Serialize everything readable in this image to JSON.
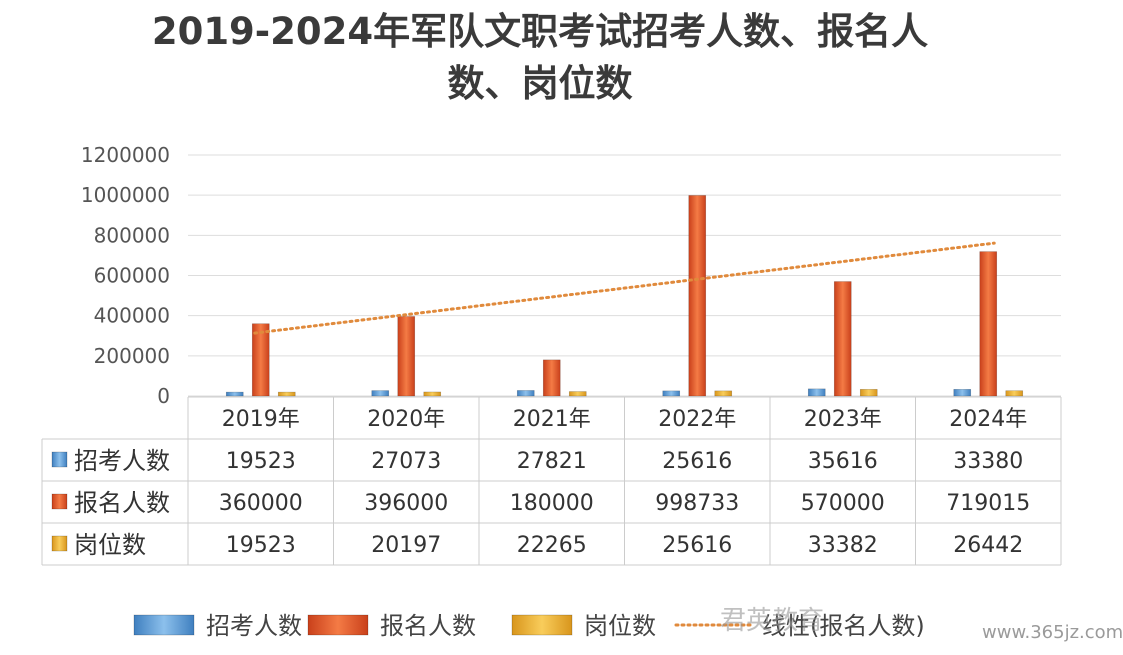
{
  "chart_data": {
    "type": "bar",
    "title_line1": "2019-2024年军队文职考试招考人数、报名人",
    "title_line2": "数、岗位数",
    "categories": [
      "2019年",
      "2020年",
      "2021年",
      "2022年",
      "2023年",
      "2024年"
    ],
    "series": [
      {
        "name": "招考人数",
        "values": [
          19523,
          27073,
          27821,
          25616,
          35616,
          33380
        ],
        "color": "#5b9bd5"
      },
      {
        "name": "报名人数",
        "values": [
          360000,
          396000,
          180000,
          998733,
          570000,
          719015
        ],
        "color": "#e0562a"
      },
      {
        "name": "岗位数",
        "values": [
          19523,
          20197,
          22265,
          25616,
          33382,
          26442
        ],
        "color": "#f2b233"
      }
    ],
    "cell_labels": [
      [
        "19523",
        "27073",
        "27821",
        "25616",
        "35616",
        "33380"
      ],
      [
        "360000",
        "396000",
        "180000",
        "998733",
        "570000",
        "719015"
      ],
      [
        "19523",
        "20197",
        "22265",
        "25616",
        "33382",
        "26442"
      ]
    ],
    "y_ticks": [
      "0",
      "200000",
      "400000",
      "600000",
      "800000",
      "1000000",
      "1200000"
    ],
    "ylim": [
      0,
      1200000
    ],
    "trendline": {
      "series": "报名人数",
      "type": "linear",
      "label": "线性(报名人数)",
      "color": "#e08a3c"
    },
    "data_table": true,
    "grid": true,
    "legend_position": "bottom"
  },
  "watermark": {
    "text": "君英教育",
    "url": "www.365jz.com"
  }
}
